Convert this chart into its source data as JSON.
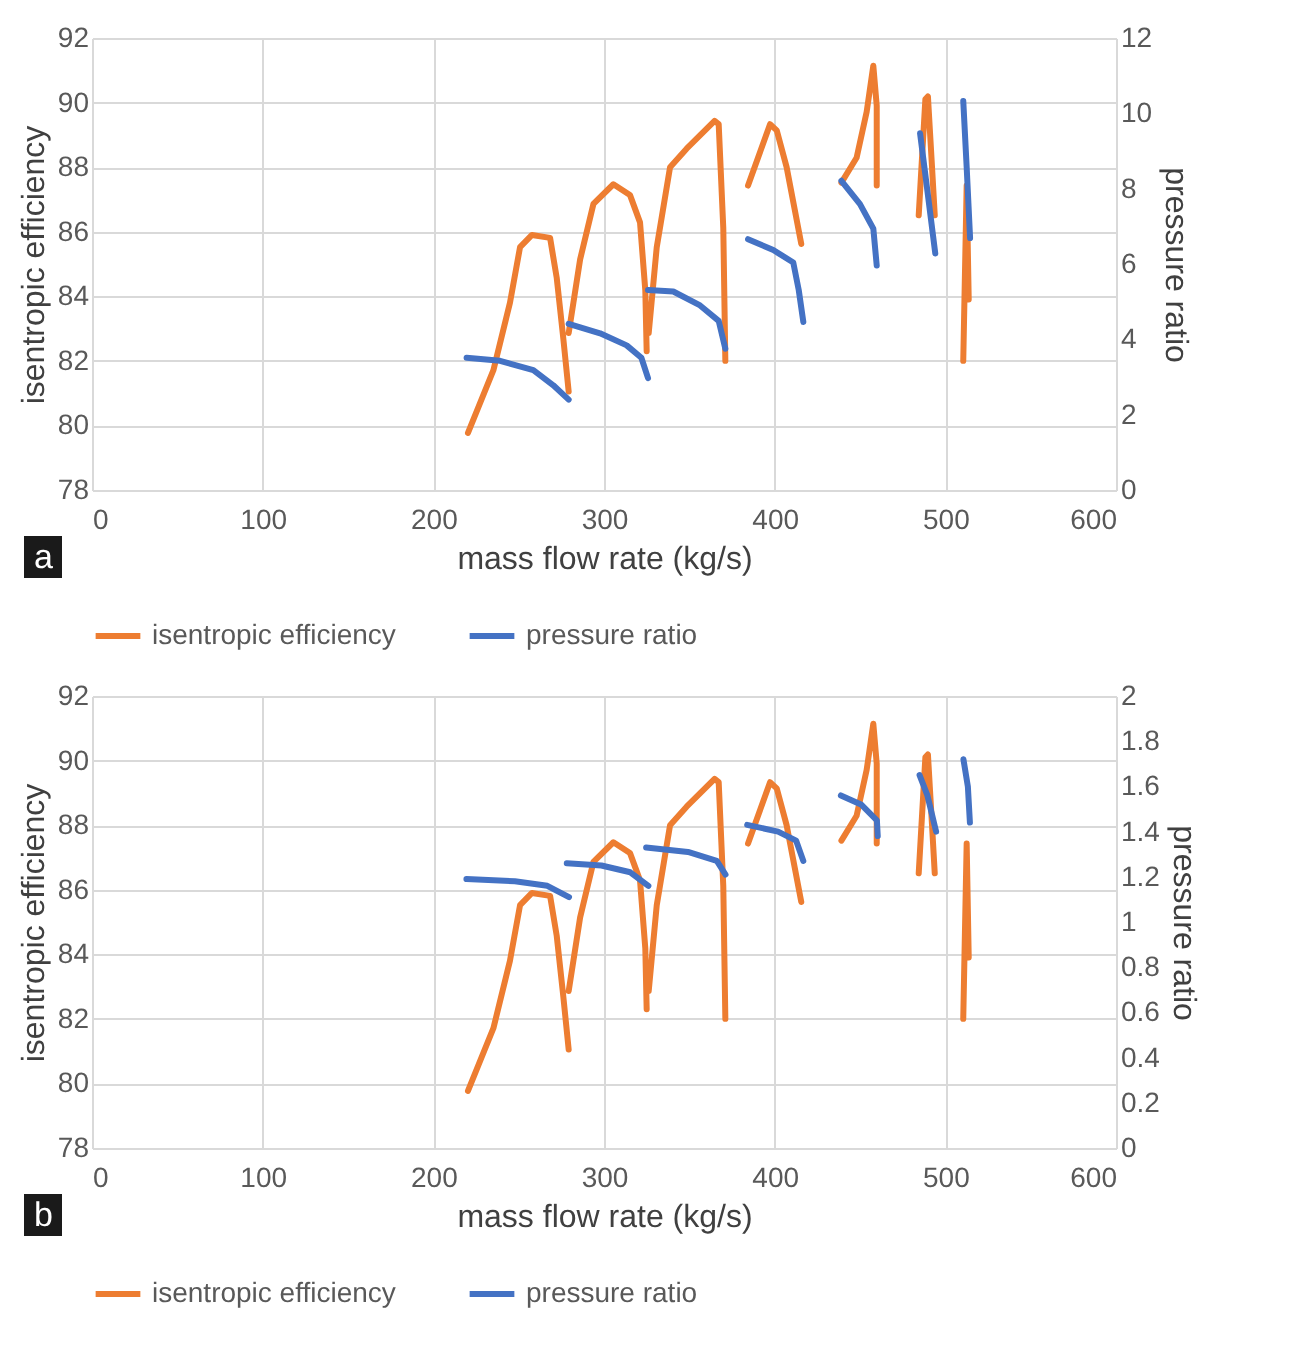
{
  "chart_data": [
    {
      "type": "line",
      "xlabel": "mass flow rate (kg/s)",
      "ylabel": "isentropic efficiency",
      "y2label": "pressure ratio",
      "annotations": [
        "a"
      ],
      "xlim": [
        0,
        600
      ],
      "xticks": [
        0,
        100,
        200,
        300,
        400,
        500,
        600
      ],
      "ylim": [
        78,
        92
      ],
      "yticks": [
        78,
        80,
        82,
        84,
        86,
        88,
        90,
        92
      ],
      "y2lim": [
        0,
        12
      ],
      "y2ticks": [
        0,
        2,
        4,
        6,
        8,
        10,
        12
      ],
      "grid": true,
      "legend": "bottom",
      "series": [
        {
          "name": "isentropic efficiency",
          "color": "#ed7d31",
          "x": [
            220.3,
            235.2,
            244.9,
            250.8,
            257.8,
            268.4,
            272.3,
            276.2,
            279.3,
            null,
            279.3,
            286,
            293.8,
            305.5,
            315.2,
            321.1,
            324.2,
            325,
            null,
            326.2,
            330.9,
            338.7,
            348.4,
            364.8,
            367.2,
            369.9,
            371.1,
            null,
            384.4,
            397.3,
            401.2,
            407,
            415.6,
            null,
            439.1,
            448,
            453.9,
            457.8,
            459.8,
            459.8,
            null,
            484.4,
            488.3,
            489.8,
            492.2,
            493.8,
            null,
            510.5,
            512.5,
            513.7
          ],
          "values": [
            79.77,
            81.71,
            83.8,
            85.52,
            85.9,
            85.81,
            84.57,
            82.67,
            81.05,
            null,
            82.86,
            85.14,
            86.86,
            87.47,
            87.14,
            86.29,
            84.19,
            82.3,
            null,
            82.86,
            85.52,
            88,
            88.57,
            89.43,
            89.33,
            86.1,
            82,
            null,
            87.43,
            89.33,
            89.14,
            88,
            85.62,
            null,
            87.52,
            88.29,
            89.71,
            91.14,
            89.9,
            87.43,
            null,
            86.51,
            90.1,
            90.19,
            88,
            86.51,
            null,
            82,
            87.43,
            83.9
          ]
        },
        {
          "name": "pressure ratio",
          "color": "#4472c4",
          "axis": "y2",
          "x": [
            219.5,
            239.1,
            258.6,
            270.3,
            279.3,
            null,
            279.3,
            297.7,
            313.3,
            321.9,
            325.8,
            null,
            325.8,
            340.6,
            356.3,
            367.2,
            371.1,
            null,
            384.4,
            399.2,
            410.9,
            414.1,
            416.8,
            null,
            439.1,
            450,
            457.8,
            459.8,
            null,
            485.2,
            489.1,
            494.1,
            null,
            510.5,
            512.5,
            514.5
          ],
          "values": [
            3.51,
            3.43,
            3.18,
            2.78,
            2.4,
            null,
            4.41,
            4.16,
            3.84,
            3.51,
            2.97,
            null,
            5.31,
            5.27,
            4.9,
            4.49,
            3.75,
            null,
            6.66,
            6.37,
            6.04,
            5.31,
            4.46,
            null,
            8.21,
            7.59,
            6.94,
            5.96,
            null,
            9.47,
            8.08,
            6.28,
            null,
            10.33,
            8.57,
            6.69
          ]
        }
      ]
    },
    {
      "type": "line",
      "xlabel": "mass flow rate (kg/s)",
      "ylabel": "isentropic efficiency",
      "y2label": "pressure ratio",
      "annotations": [
        "b"
      ],
      "xlim": [
        0,
        600
      ],
      "xticks": [
        0,
        100,
        200,
        300,
        400,
        500,
        600
      ],
      "ylim": [
        78,
        92
      ],
      "yticks": [
        78,
        80,
        82,
        84,
        86,
        88,
        90,
        92
      ],
      "y2lim": [
        0,
        2
      ],
      "y2ticks": [
        0,
        0.2,
        0.4,
        0.6,
        0.8,
        1,
        1.2,
        1.4,
        1.6,
        1.8,
        2
      ],
      "grid": true,
      "legend": "bottom",
      "series": [
        {
          "name": "isentropic efficiency",
          "color": "#ed7d31",
          "x": [
            220.3,
            235.2,
            244.9,
            250.8,
            257.8,
            268.4,
            272.3,
            276.2,
            279.3,
            null,
            279.3,
            286,
            293.8,
            305.5,
            315.2,
            321.1,
            324.2,
            325,
            null,
            326.2,
            330.9,
            338.7,
            348.4,
            364.8,
            367.2,
            369.9,
            371.1,
            null,
            384.4,
            397.3,
            401.2,
            407,
            415.6,
            null,
            439.1,
            448,
            453.9,
            457.8,
            459.8,
            459.8,
            null,
            484.4,
            488.3,
            489.8,
            492.2,
            493.8,
            null,
            510.5,
            512.5,
            513.7
          ],
          "values": [
            79.77,
            81.71,
            83.8,
            85.52,
            85.9,
            85.81,
            84.57,
            82.67,
            81.05,
            null,
            82.86,
            85.14,
            86.86,
            87.47,
            87.14,
            86.29,
            84.19,
            82.3,
            null,
            82.86,
            85.52,
            88,
            88.57,
            89.43,
            89.33,
            86.1,
            82,
            null,
            87.43,
            89.33,
            89.14,
            88,
            85.62,
            null,
            87.52,
            88.29,
            89.71,
            91.14,
            89.9,
            87.43,
            null,
            86.51,
            90.1,
            90.19,
            88,
            86.51,
            null,
            82,
            87.43,
            83.9
          ]
        },
        {
          "name": "pressure ratio",
          "color": "#4472c4",
          "axis": "y2",
          "x": [
            219.4,
            247.8,
            266.8,
            279.5,
            null,
            278.2,
            298.5,
            315.4,
            326,
            null,
            324.7,
            349.2,
            366.1,
            371.2,
            null,
            383.9,
            402,
            412.6,
            416.8,
            null,
            438.8,
            450.6,
            459.9,
            460.4,
            null,
            484.9,
            489.5,
            494.6,
            null,
            510.6,
            513.2,
            514.4
          ],
          "values": [
            1.19,
            1.18,
            1.16,
            1.11,
            null,
            1.26,
            1.25,
            1.22,
            1.16,
            null,
            1.33,
            1.31,
            1.27,
            1.21,
            null,
            1.43,
            1.4,
            1.36,
            1.27,
            null,
            1.56,
            1.52,
            1.45,
            1.38,
            null,
            1.65,
            1.56,
            1.4,
            null,
            1.72,
            1.6,
            1.44
          ]
        }
      ]
    }
  ]
}
